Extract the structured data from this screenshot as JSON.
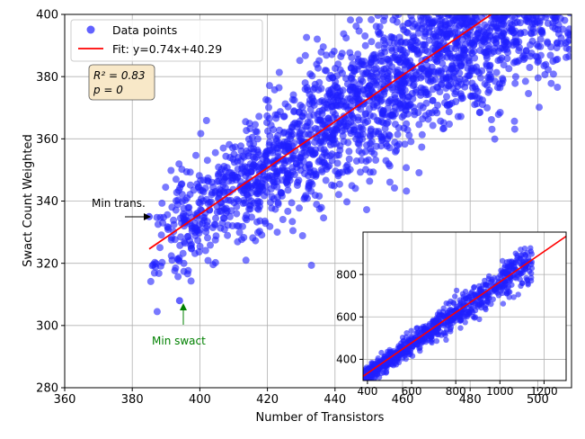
{
  "chart_data": [
    {
      "type": "scatter",
      "title": "",
      "xlabel": "Number of Transistors",
      "ylabel": "Swact Count Weighted",
      "xlim": [
        360,
        510
      ],
      "ylim": [
        280,
        400
      ],
      "xticks": [
        360,
        380,
        400,
        420,
        440,
        460,
        480,
        500
      ],
      "yticks": [
        280,
        300,
        320,
        340,
        360,
        380,
        400
      ],
      "grid": true,
      "legend_position": "top-left",
      "series": [
        {
          "name": "Data points",
          "kind": "scatter",
          "color": "#1f1fff",
          "x": [],
          "y": []
        },
        {
          "name": "Fit: y=0.74x+40.29",
          "kind": "line",
          "color": "#ff0000",
          "x": [
            385,
            510
          ],
          "y": [
            324.6,
            417.7
          ]
        }
      ],
      "fit": {
        "slope": 0.74,
        "intercept": 40.29
      },
      "stats_box": [
        "R² = 0.83",
        "p = 0"
      ],
      "annotations": [
        {
          "text": "Min trans.",
          "x": 385,
          "y": 335,
          "color": "#000000"
        },
        {
          "text": "Min swact",
          "x": 394,
          "y": 308,
          "color": "#008000"
        }
      ]
    },
    {
      "type": "scatter",
      "title": "",
      "xlabel": "",
      "ylabel": "",
      "xlim": [
        380,
        1300
      ],
      "ylim": [
        300,
        1000
      ],
      "xticks": [
        400,
        600,
        800,
        1000,
        1200
      ],
      "yticks": [
        400,
        600,
        800
      ],
      "grid": true,
      "series": [
        {
          "name": "",
          "kind": "scatter",
          "color": "#1f1fff"
        },
        {
          "name": "",
          "kind": "line",
          "color": "#ff0000",
          "x": [
            380,
            1300
          ],
          "y": [
            320,
            980
          ]
        }
      ]
    }
  ]
}
